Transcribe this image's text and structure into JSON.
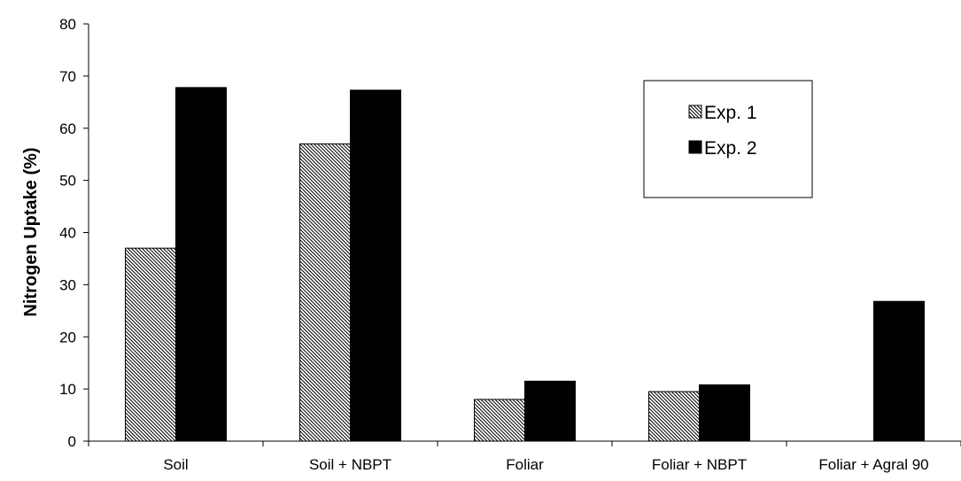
{
  "chart_data": {
    "type": "bar",
    "title": "",
    "xlabel": "",
    "ylabel": "Nitrogen Uptake (%)",
    "ylim": [
      0,
      80
    ],
    "yticks": [
      0,
      10,
      20,
      30,
      40,
      50,
      60,
      70,
      80
    ],
    "categories": [
      "Soil",
      "Soil + NBPT",
      "Foliar",
      "Foliar + NBPT",
      "Foliar + Agral 90"
    ],
    "series": [
      {
        "name": "Exp. 1",
        "fill": "hatched",
        "color": "#000000",
        "values": [
          37,
          57,
          8,
          9.5,
          null
        ]
      },
      {
        "name": "Exp. 2",
        "fill": "solid",
        "color": "#000000",
        "values": [
          67.8,
          67.3,
          11.5,
          10.8,
          26.8
        ]
      }
    ],
    "grid": false,
    "legend": {
      "position": "top-right"
    }
  }
}
